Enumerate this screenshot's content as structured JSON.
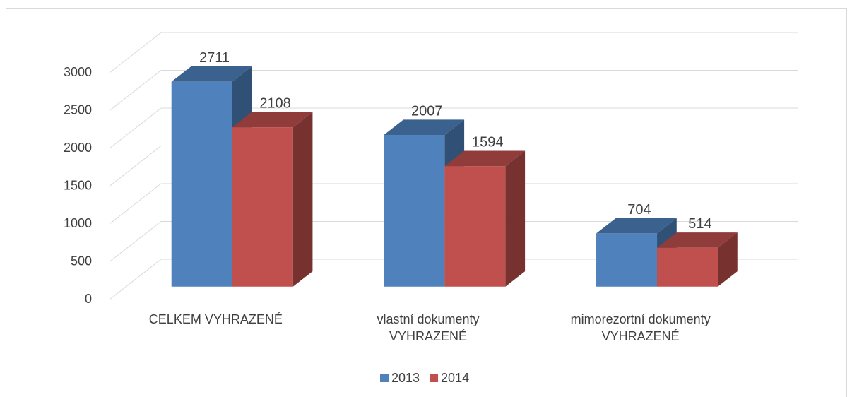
{
  "chart_data": {
    "type": "bar3d",
    "categories": [
      "CELKEM VYHRAZENÉ",
      "vlastní dokumenty VYHRAZENÉ",
      "mimorezortní dokumenty VYHRAZENÉ"
    ],
    "series": [
      {
        "name": "2013",
        "color": "#4f81bd",
        "values": [
          2711,
          2007,
          704
        ]
      },
      {
        "name": "2014",
        "color": "#c0504d",
        "values": [
          2108,
          1594,
          514
        ]
      }
    ],
    "ylim": [
      0,
      3000
    ],
    "yticks": [
      0,
      500,
      1000,
      1500,
      2000,
      2500,
      3000
    ],
    "grid": true,
    "legend": "bottom"
  }
}
